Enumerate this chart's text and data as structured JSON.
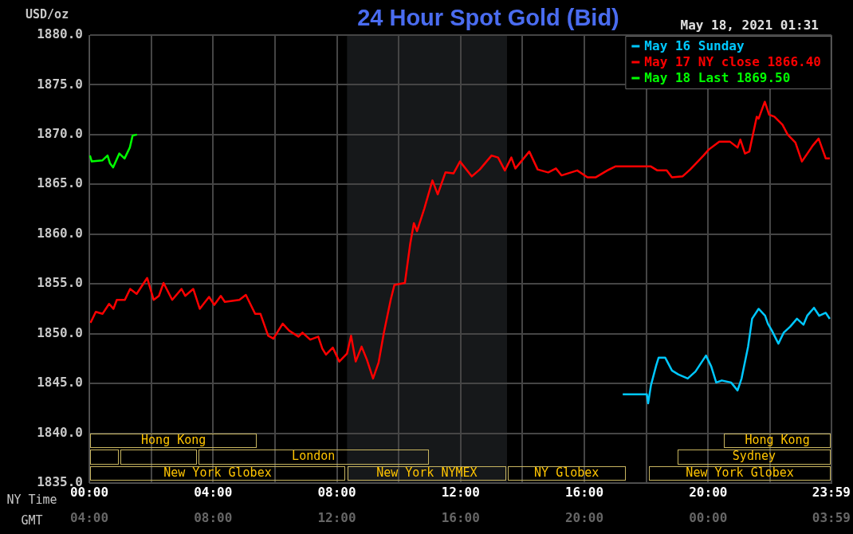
{
  "chart_data": {
    "type": "line",
    "title": "24 Hour Spot Gold (Bid)",
    "subtitle": "May 18, 2021 01:31",
    "ylabel": "USD/oz",
    "xlabel": "NY Time",
    "x2label": "GMT",
    "xlim": [
      0,
      23.983
    ],
    "ylim": [
      1835,
      1880
    ],
    "xticks": [
      {
        "value": 0,
        "label": "00:00"
      },
      {
        "value": 2,
        "label": null
      },
      {
        "value": 4,
        "label": "04:00"
      },
      {
        "value": 6,
        "label": null
      },
      {
        "value": 8,
        "label": "08:00"
      },
      {
        "value": 10,
        "label": null
      },
      {
        "value": 12,
        "label": "12:00"
      },
      {
        "value": 14,
        "label": null
      },
      {
        "value": 16,
        "label": "16:00"
      },
      {
        "value": 18,
        "label": null
      },
      {
        "value": 20,
        "label": "20:00"
      },
      {
        "value": 22,
        "label": null
      },
      {
        "value": 23.983,
        "label": "23:59"
      }
    ],
    "x2lim": [
      "2021-05-17T04:00",
      "2021-05-18T03:59"
    ],
    "x2ticks": [
      {
        "value": "2021-05-17T04:00",
        "label": "04:00"
      },
      {
        "value": "2021-05-17T08:00",
        "label": "08:00"
      },
      {
        "value": "2021-05-17T12:00",
        "label": "12:00"
      },
      {
        "value": "2021-05-17T16:00",
        "label": "16:00"
      },
      {
        "value": "2021-05-17T20:00",
        "label": "20:00"
      },
      {
        "value": "2021-05-18T00:00",
        "label": "00:00"
      },
      {
        "value": "2021-05-18T03:59",
        "label": "03:59"
      }
    ],
    "yticks": [
      {
        "value": 1835,
        "label": "1835.0"
      },
      {
        "value": 1840,
        "label": "1840.0"
      },
      {
        "value": 1845,
        "label": "1845.0"
      },
      {
        "value": 1850,
        "label": "1850.0"
      },
      {
        "value": 1855,
        "label": "1855.0"
      },
      {
        "value": 1860,
        "label": "1860.0"
      },
      {
        "value": 1865,
        "label": "1865.0"
      },
      {
        "value": 1870,
        "label": "1870.0"
      },
      {
        "value": 1875,
        "label": "1875.0"
      },
      {
        "value": 1880,
        "label": "1880.0"
      }
    ],
    "grid": true,
    "legend": "top right",
    "marker": "none",
    "line_style": "solid",
    "bands": [
      {
        "axis": "x",
        "from": 8.33,
        "to": 13.5,
        "color": "#16181a"
      }
    ],
    "annotations": [
      "Hong Kong",
      "London",
      "New York Globex",
      "New York NYMEX",
      "NY Globex",
      "Hong Kong",
      "Sydney",
      "New York Globex"
    ],
    "series": [
      {
        "name": "May 16 Sunday",
        "color": "#00c8ff",
        "x": [
          17.24,
          17.55,
          18.02,
          18.06,
          18.15,
          18.32,
          18.4,
          18.61,
          18.83,
          19.04,
          19.34,
          19.59,
          19.93,
          20.1,
          20.26,
          20.44,
          20.74,
          20.95,
          21.08,
          21.29,
          21.42,
          21.63,
          21.84,
          21.93,
          22.06,
          22.27,
          22.44,
          22.65,
          22.87,
          23.08,
          23.2,
          23.42,
          23.59,
          23.8,
          23.93
        ],
        "values": [
          1843.9,
          1843.9,
          1843.9,
          1843.0,
          1844.8,
          1846.8,
          1847.6,
          1847.6,
          1846.3,
          1845.9,
          1845.5,
          1846.2,
          1847.8,
          1846.7,
          1845.1,
          1845.3,
          1845.1,
          1844.3,
          1845.5,
          1848.7,
          1851.5,
          1852.5,
          1851.8,
          1851.0,
          1850.3,
          1849.0,
          1850.1,
          1850.7,
          1851.5,
          1850.9,
          1851.8,
          1852.6,
          1851.8,
          1852.1,
          1851.5
        ]
      },
      {
        "name": "May 17 NY close 1866.40",
        "color": "#ff0000",
        "x": [
          0.04,
          0.21,
          0.43,
          0.64,
          0.78,
          0.89,
          1.15,
          1.32,
          1.53,
          1.87,
          2.08,
          2.25,
          2.4,
          2.68,
          2.98,
          3.1,
          3.36,
          3.57,
          3.87,
          4.04,
          4.25,
          4.38,
          4.85,
          5.06,
          5.36,
          5.53,
          5.78,
          5.95,
          6.25,
          6.46,
          6.76,
          6.89,
          7.14,
          7.4,
          7.53,
          7.65,
          7.87,
          8.08,
          8.33,
          8.46,
          8.61,
          8.8,
          8.97,
          9.17,
          9.35,
          9.52,
          9.74,
          9.86,
          10.2,
          10.37,
          10.49,
          10.59,
          10.83,
          11.09,
          11.26,
          11.51,
          11.77,
          11.98,
          12.36,
          12.62,
          13.0,
          13.21,
          13.43,
          13.64,
          13.77,
          14.22,
          14.49,
          14.83,
          15.08,
          15.26,
          15.77,
          16.1,
          16.36,
          16.74,
          17.0,
          18.15,
          18.36,
          18.66,
          18.83,
          19.17,
          19.42,
          19.85,
          20.02,
          20.36,
          20.7,
          20.95,
          21.04,
          21.19,
          21.33,
          21.46,
          21.57,
          21.63,
          21.83,
          21.97,
          22.14,
          22.4,
          22.57,
          22.82,
          23.03,
          23.25,
          23.38,
          23.57,
          23.8,
          23.93
        ],
        "values": [
          1851.1,
          1852.2,
          1852.0,
          1853.0,
          1852.5,
          1853.4,
          1853.4,
          1854.5,
          1854.0,
          1855.6,
          1853.4,
          1853.8,
          1855.1,
          1853.4,
          1854.5,
          1853.8,
          1854.5,
          1852.5,
          1853.7,
          1852.9,
          1853.8,
          1853.2,
          1853.4,
          1853.9,
          1852.0,
          1852.0,
          1849.8,
          1849.5,
          1851.0,
          1850.3,
          1849.7,
          1850.1,
          1849.4,
          1849.7,
          1848.5,
          1847.9,
          1848.6,
          1847.2,
          1848.0,
          1849.8,
          1847.2,
          1848.7,
          1847.4,
          1845.5,
          1847.1,
          1850.1,
          1853.4,
          1854.9,
          1855.1,
          1859.0,
          1861.1,
          1860.3,
          1862.6,
          1865.4,
          1864.0,
          1866.2,
          1866.1,
          1867.3,
          1865.8,
          1866.5,
          1867.9,
          1867.7,
          1866.4,
          1867.7,
          1866.6,
          1868.3,
          1866.5,
          1866.2,
          1866.6,
          1865.9,
          1866.4,
          1865.7,
          1865.7,
          1866.4,
          1866.8,
          1866.8,
          1866.4,
          1866.4,
          1865.7,
          1865.8,
          1866.5,
          1867.9,
          1868.5,
          1869.3,
          1869.3,
          1868.7,
          1869.5,
          1868.1,
          1868.3,
          1870.2,
          1871.8,
          1871.6,
          1873.3,
          1872.0,
          1871.8,
          1871.0,
          1870.0,
          1869.2,
          1867.3,
          1868.3,
          1868.9,
          1869.6,
          1867.6,
          1867.6
        ]
      },
      {
        "name": "May 18 Last 1869.50",
        "color": "#00ff00",
        "x": [
          0.02,
          0.08,
          0.42,
          0.59,
          0.67,
          0.77,
          0.97,
          1.14,
          1.31,
          1.4,
          1.54
        ],
        "values": [
          1867.9,
          1867.3,
          1867.4,
          1867.9,
          1867.1,
          1866.7,
          1868.1,
          1867.6,
          1868.7,
          1869.9,
          1870.0
        ]
      }
    ]
  }
}
